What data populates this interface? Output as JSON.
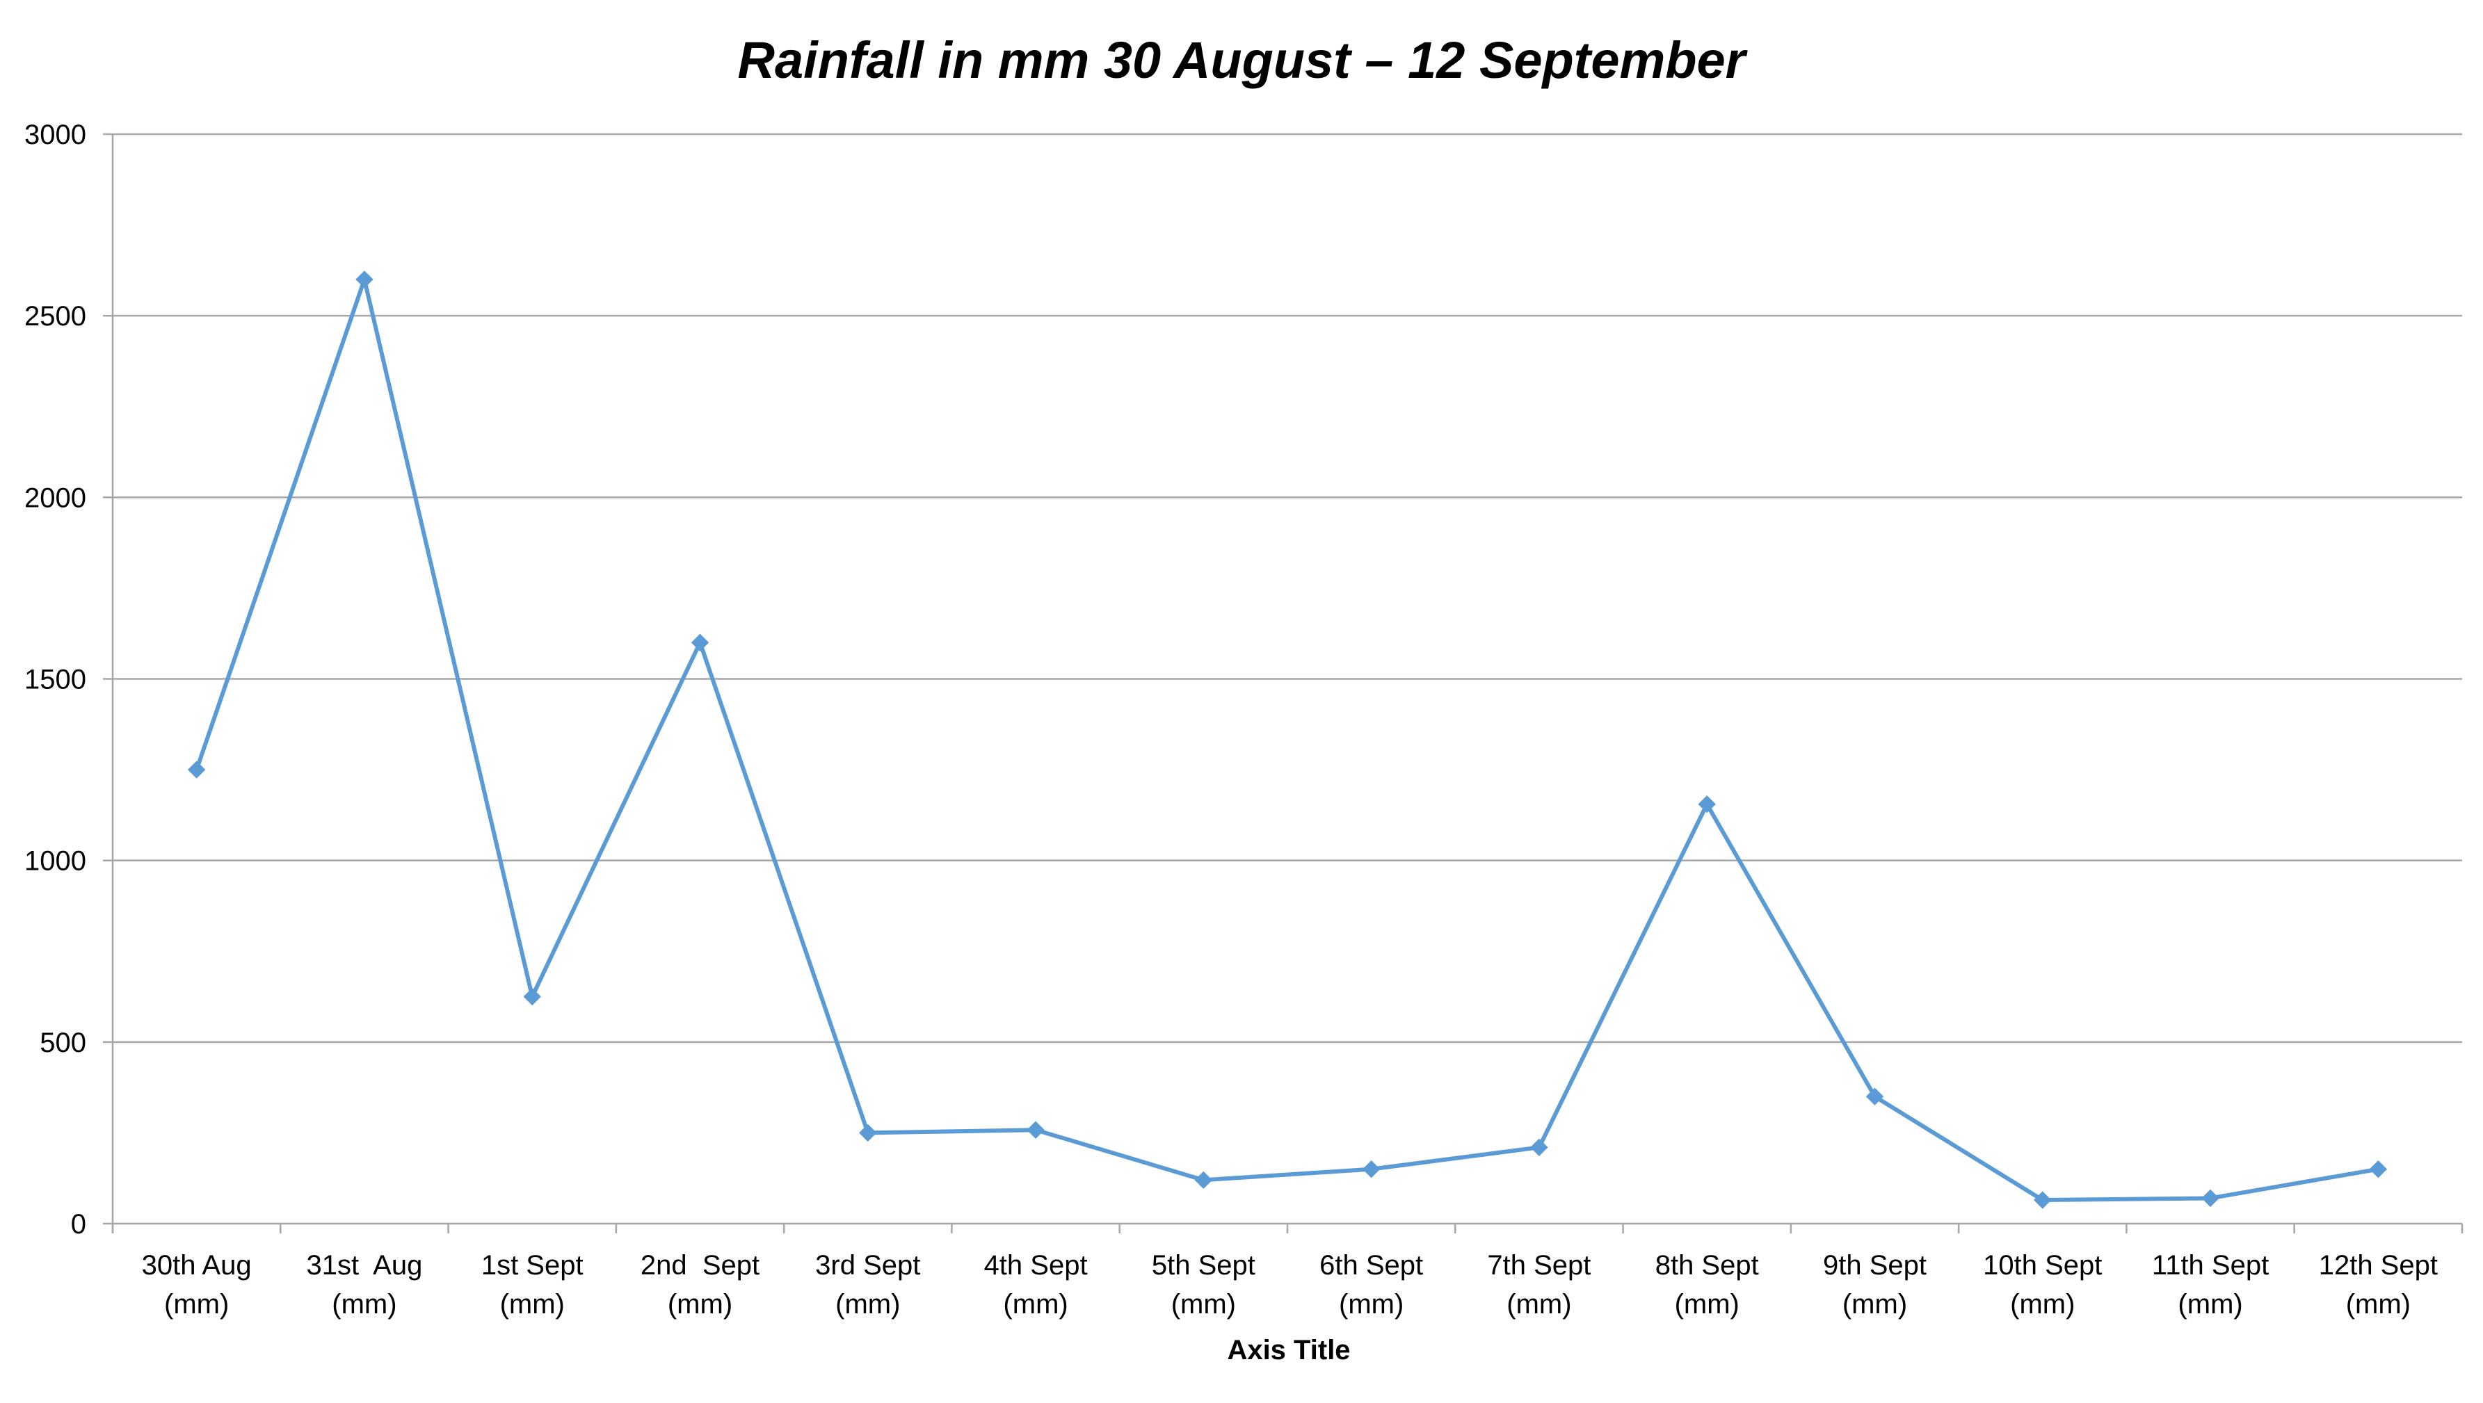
{
  "chart_data": {
    "type": "line",
    "title": "Rainfall in mm 30 August – 12 September",
    "xlabel": "Axis Title",
    "ylabel": "",
    "ylim": [
      0,
      3000
    ],
    "yticks": [
      "0",
      "500",
      "1000",
      "1500",
      "2000",
      "2500",
      "3000"
    ],
    "ytick_values": [
      0,
      500,
      1000,
      1500,
      2000,
      2500,
      3000
    ],
    "grid": true,
    "legend": "none",
    "categories": [
      [
        "30th Aug",
        "(mm)"
      ],
      [
        "31st  Aug",
        "(mm)"
      ],
      [
        "1st Sept",
        "(mm)"
      ],
      [
        "2nd  Sept",
        "(mm)"
      ],
      [
        "3rd Sept",
        "(mm)"
      ],
      [
        "4th Sept",
        "(mm)"
      ],
      [
        "5th Sept",
        "(mm)"
      ],
      [
        "6th Sept",
        "(mm)"
      ],
      [
        "7th Sept",
        "(mm)"
      ],
      [
        "8th Sept",
        "(mm)"
      ],
      [
        "9th Sept",
        "(mm)"
      ],
      [
        "10th Sept",
        "(mm)"
      ],
      [
        "11th Sept",
        "(mm)"
      ],
      [
        "12th Sept",
        "(mm)"
      ]
    ],
    "series": [
      {
        "values": [
          1250,
          2600,
          625,
          1600,
          250,
          258,
          120,
          150,
          210,
          1155,
          350,
          65,
          70,
          150
        ],
        "color": "#5B9BD5",
        "marker": "diamond"
      }
    ],
    "colors": {
      "gridline": "#A6A6A6",
      "axis": "#A6A6A6",
      "line": "#5B9BD5"
    }
  }
}
